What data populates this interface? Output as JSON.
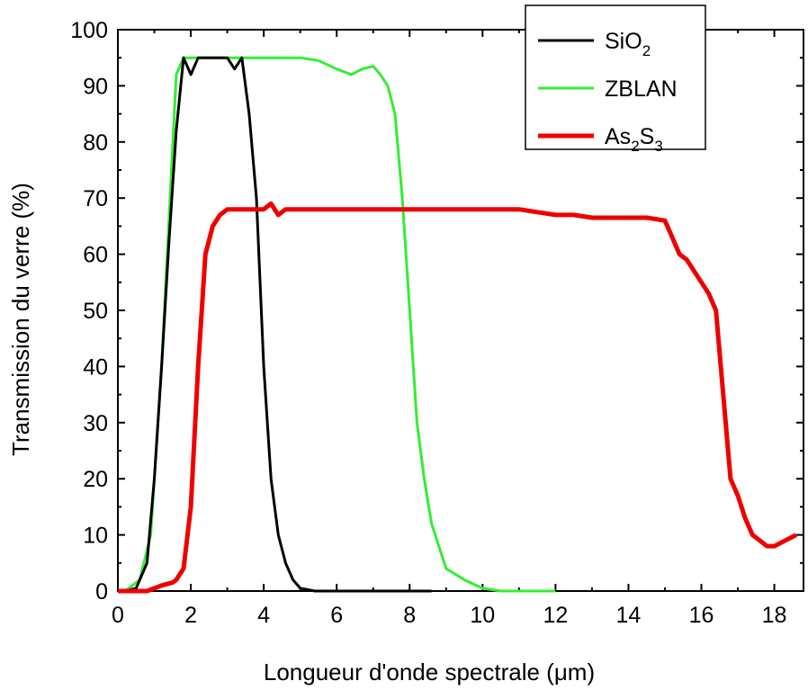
{
  "chart_data": {
    "type": "line",
    "title": "",
    "xlabel": "Longueur d'onde spectrale (μm)",
    "ylabel": "Transmission du verre (%)",
    "xlim": [
      0,
      18.8
    ],
    "ylim": [
      0,
      100
    ],
    "xticks": [
      0,
      2,
      4,
      6,
      8,
      10,
      12,
      14,
      16,
      18
    ],
    "yticks": [
      0,
      10,
      20,
      30,
      40,
      50,
      60,
      70,
      80,
      90,
      100
    ],
    "grid": false,
    "legend_position": "top-right",
    "series": [
      {
        "name": "SiO2",
        "label_base": "SiO",
        "label_sub": "2",
        "color": "#000000",
        "points": [
          [
            0.2,
            0
          ],
          [
            0.5,
            0.5
          ],
          [
            0.8,
            5
          ],
          [
            1.0,
            20
          ],
          [
            1.2,
            40
          ],
          [
            1.4,
            62
          ],
          [
            1.6,
            82
          ],
          [
            1.8,
            95
          ],
          [
            2.0,
            92
          ],
          [
            2.2,
            95
          ],
          [
            2.6,
            95
          ],
          [
            3.0,
            95
          ],
          [
            3.2,
            93
          ],
          [
            3.4,
            95
          ],
          [
            3.6,
            85
          ],
          [
            3.8,
            70
          ],
          [
            4.0,
            40
          ],
          [
            4.2,
            20
          ],
          [
            4.4,
            10
          ],
          [
            4.6,
            5
          ],
          [
            4.8,
            2
          ],
          [
            5.0,
            0.5
          ],
          [
            5.4,
            0
          ],
          [
            6.0,
            0
          ],
          [
            7.0,
            0
          ],
          [
            8.0,
            0
          ],
          [
            8.6,
            0
          ]
        ]
      },
      {
        "name": "ZBLAN",
        "color": "#33ee33",
        "points": [
          [
            0.2,
            0
          ],
          [
            0.6,
            2
          ],
          [
            0.9,
            10
          ],
          [
            1.2,
            40
          ],
          [
            1.6,
            92
          ],
          [
            1.8,
            95
          ],
          [
            2.5,
            95
          ],
          [
            3.0,
            95
          ],
          [
            4.0,
            95
          ],
          [
            5.0,
            95
          ],
          [
            5.5,
            94.5
          ],
          [
            6.0,
            93
          ],
          [
            6.4,
            92
          ],
          [
            6.7,
            93
          ],
          [
            7.0,
            93.5
          ],
          [
            7.2,
            92
          ],
          [
            7.4,
            90
          ],
          [
            7.6,
            85
          ],
          [
            7.8,
            70
          ],
          [
            8.0,
            50
          ],
          [
            8.2,
            30
          ],
          [
            8.4,
            20
          ],
          [
            8.6,
            12
          ],
          [
            8.8,
            8
          ],
          [
            9.0,
            4
          ],
          [
            9.5,
            2
          ],
          [
            10.0,
            0.5
          ],
          [
            10.5,
            0
          ],
          [
            11.0,
            0
          ],
          [
            12.0,
            0
          ]
        ]
      },
      {
        "name": "As2S3",
        "label_base": "As",
        "label_sub1": "2",
        "label_mid": "S",
        "label_sub2": "3",
        "color": "#ee0000",
        "points": [
          [
            0.0,
            0
          ],
          [
            0.8,
            0
          ],
          [
            1.2,
            1
          ],
          [
            1.5,
            1.5
          ],
          [
            1.6,
            2
          ],
          [
            1.8,
            4
          ],
          [
            2.0,
            15
          ],
          [
            2.2,
            40
          ],
          [
            2.4,
            60
          ],
          [
            2.6,
            65
          ],
          [
            2.8,
            67
          ],
          [
            3.0,
            68
          ],
          [
            3.5,
            68
          ],
          [
            4.0,
            68
          ],
          [
            4.2,
            69
          ],
          [
            4.4,
            67
          ],
          [
            4.6,
            68
          ],
          [
            5.0,
            68
          ],
          [
            6.0,
            68
          ],
          [
            7.0,
            68
          ],
          [
            8.0,
            68
          ],
          [
            9.0,
            68
          ],
          [
            10.0,
            68
          ],
          [
            11.0,
            68
          ],
          [
            11.5,
            67.5
          ],
          [
            12.0,
            67
          ],
          [
            12.5,
            67
          ],
          [
            13.0,
            66.5
          ],
          [
            13.5,
            66.5
          ],
          [
            14.0,
            66.5
          ],
          [
            14.5,
            66.5
          ],
          [
            15.0,
            66
          ],
          [
            15.2,
            63
          ],
          [
            15.4,
            60
          ],
          [
            15.6,
            59
          ],
          [
            16.0,
            55
          ],
          [
            16.2,
            53
          ],
          [
            16.4,
            50
          ],
          [
            16.6,
            35
          ],
          [
            16.8,
            20
          ],
          [
            17.0,
            17
          ],
          [
            17.2,
            13
          ],
          [
            17.4,
            10
          ],
          [
            17.6,
            9
          ],
          [
            17.8,
            8
          ],
          [
            18.0,
            8
          ],
          [
            18.3,
            9
          ],
          [
            18.6,
            10
          ]
        ]
      }
    ]
  }
}
